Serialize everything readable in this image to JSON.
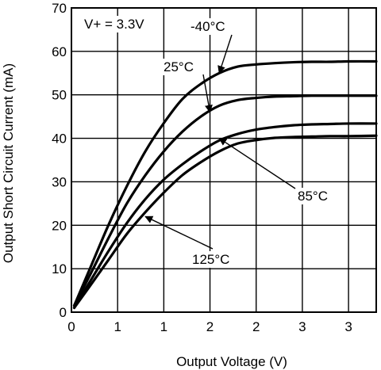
{
  "chart_data": {
    "type": "line",
    "title": "",
    "xlabel": "Output Voltage (V)",
    "ylabel": "Output Short Circuit Current (mA)",
    "xlim": [
      0,
      3.3
    ],
    "ylim": [
      0,
      70
    ],
    "grid": true,
    "x_ticks": [
      {
        "value": 0,
        "label": "0"
      },
      {
        "value": 0.5,
        "label": "1"
      },
      {
        "value": 1.0,
        "label": "1"
      },
      {
        "value": 1.5,
        "label": "2"
      },
      {
        "value": 2.0,
        "label": "2"
      },
      {
        "value": 2.5,
        "label": "3"
      },
      {
        "value": 3.0,
        "label": "3"
      }
    ],
    "y_ticks": [
      0,
      10,
      20,
      30,
      40,
      50,
      60,
      70
    ],
    "series": [
      {
        "name": "-40°C",
        "x": [
          0.03,
          0.2,
          0.4,
          0.6,
          0.8,
          1.0,
          1.2,
          1.4,
          1.6,
          1.8,
          2.0,
          2.2,
          2.4,
          2.6,
          2.8,
          3.0,
          3.3
        ],
        "y": [
          1.5,
          10,
          20,
          29,
          37,
          43.5,
          49,
          52.5,
          55,
          56.5,
          57,
          57.3,
          57.5,
          57.6,
          57.6,
          57.7,
          57.7
        ]
      },
      {
        "name": "25°C",
        "x": [
          0.03,
          0.2,
          0.4,
          0.6,
          0.8,
          1.0,
          1.2,
          1.4,
          1.6,
          1.8,
          2.0,
          2.2,
          2.4,
          2.6,
          2.8,
          3.0,
          3.3
        ],
        "y": [
          1.5,
          8.5,
          17,
          25,
          31.5,
          37,
          41.5,
          45,
          47.5,
          48.8,
          49.3,
          49.6,
          49.7,
          49.8,
          49.8,
          49.8,
          49.8
        ]
      },
      {
        "name": "85°C",
        "x": [
          0.03,
          0.2,
          0.4,
          0.6,
          0.8,
          1.0,
          1.2,
          1.4,
          1.6,
          1.8,
          2.0,
          2.2,
          2.4,
          2.6,
          2.8,
          3.0,
          3.3
        ],
        "y": [
          1.0,
          7.0,
          14,
          20.5,
          26,
          30.5,
          34,
          37,
          39.5,
          41,
          42,
          42.6,
          43,
          43.2,
          43.3,
          43.4,
          43.4
        ]
      },
      {
        "name": "125°C",
        "x": [
          0.03,
          0.2,
          0.4,
          0.6,
          0.8,
          1.0,
          1.2,
          1.4,
          1.6,
          1.8,
          2.0,
          2.2,
          2.4,
          2.6,
          2.8,
          3.0,
          3.3
        ],
        "y": [
          1.0,
          6.0,
          12,
          18,
          23,
          27.5,
          31.5,
          34.5,
          37,
          38.8,
          39.6,
          40.1,
          40.3,
          40.4,
          40.5,
          40.5,
          40.6
        ]
      }
    ],
    "annotations": [
      {
        "text": "V+ = 3.3V"
      },
      {
        "text": "-40°C",
        "target_series": "-40°C",
        "arrow_to": [
          1.6,
          55
        ]
      },
      {
        "text": "25°C",
        "target_series": "25°C",
        "arrow_to": [
          1.5,
          46
        ]
      },
      {
        "text": "85°C",
        "target_series": "85°C",
        "arrow_to": [
          1.6,
          40
        ]
      },
      {
        "text": "125°C",
        "target_series": "125°C",
        "arrow_to": [
          0.8,
          22
        ]
      }
    ]
  }
}
